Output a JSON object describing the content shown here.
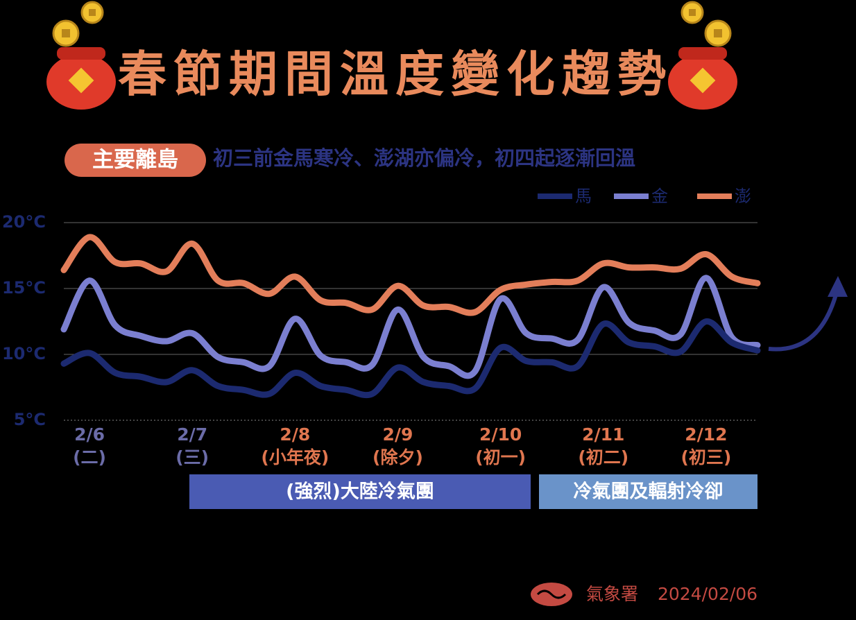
{
  "chart_data": {
    "type": "line",
    "title": "春節期間溫度變化趨勢",
    "tag": "主要離島",
    "subtitle": "初三前金馬寒冷、澎湖亦偏冷，初四起逐漸回溫",
    "categories": [
      null,
      "2/6",
      null,
      null,
      null,
      "2/7",
      null,
      null,
      null,
      "2/8",
      null,
      null,
      null,
      "2/9",
      null,
      null,
      null,
      "2/10",
      null,
      null,
      null,
      "2/11",
      null,
      null,
      null,
      "2/12",
      null,
      null
    ],
    "category_notes": [
      null,
      "(二)",
      null,
      null,
      null,
      "(三)",
      null,
      null,
      null,
      "(小年夜)",
      null,
      null,
      null,
      "(除夕)",
      null,
      null,
      null,
      "(初一)",
      null,
      null,
      null,
      "(初二)",
      null,
      null,
      null,
      "(初三)",
      null,
      null
    ],
    "category_colors": [
      null,
      "#6b6ca8",
      null,
      null,
      null,
      "#6b6ca8",
      null,
      null,
      null,
      "#e0764f",
      null,
      null,
      null,
      "#e0764f",
      null,
      null,
      null,
      "#e0764f",
      null,
      null,
      null,
      "#e0764f",
      null,
      null,
      null,
      "#e0764f",
      null,
      null
    ],
    "series": [
      {
        "name": "馬",
        "color": "#1c2a70",
        "values": [
          9.3,
          10.1,
          8.6,
          8.3,
          7.9,
          8.8,
          7.6,
          7.3,
          7.0,
          8.6,
          7.6,
          7.3,
          7.0,
          9.0,
          7.9,
          7.6,
          7.4,
          10.5,
          9.5,
          9.4,
          9.1,
          12.3,
          10.9,
          10.6,
          10.2,
          12.5,
          10.9,
          10.3
        ]
      },
      {
        "name": "金",
        "color": "#7b7fd0",
        "values": [
          11.9,
          15.6,
          12.2,
          11.4,
          11.0,
          11.6,
          9.8,
          9.4,
          9.1,
          12.7,
          9.9,
          9.4,
          9.2,
          13.4,
          9.8,
          9.1,
          8.7,
          14.2,
          11.6,
          11.2,
          11.1,
          15.1,
          12.4,
          11.8,
          11.5,
          15.8,
          11.3,
          10.7
        ]
      },
      {
        "name": "澎",
        "color": "#e37e5a",
        "values": [
          16.4,
          18.9,
          17.0,
          16.9,
          16.3,
          18.4,
          15.6,
          15.4,
          14.6,
          15.9,
          14.1,
          13.9,
          13.4,
          15.2,
          13.7,
          13.6,
          13.2,
          14.9,
          15.3,
          15.5,
          15.6,
          16.9,
          16.6,
          16.6,
          16.5,
          17.6,
          15.9,
          15.4
        ]
      }
    ],
    "ylim": [
      5,
      20
    ],
    "yticks": [
      {
        "value": 5,
        "label": "5°C"
      },
      {
        "value": 10,
        "label": "10°C"
      },
      {
        "value": 15,
        "label": "15°C"
      },
      {
        "value": 20,
        "label": "20°C"
      }
    ],
    "grid": true,
    "annotations": [
      {
        "text": "(強烈)大陸冷氣團",
        "color": "#4a5bb3"
      },
      {
        "text": "冷氣團及輻射冷卻",
        "color": "#6a93c9"
      }
    ],
    "source": "氣象署",
    "date": "2024/02/06"
  }
}
